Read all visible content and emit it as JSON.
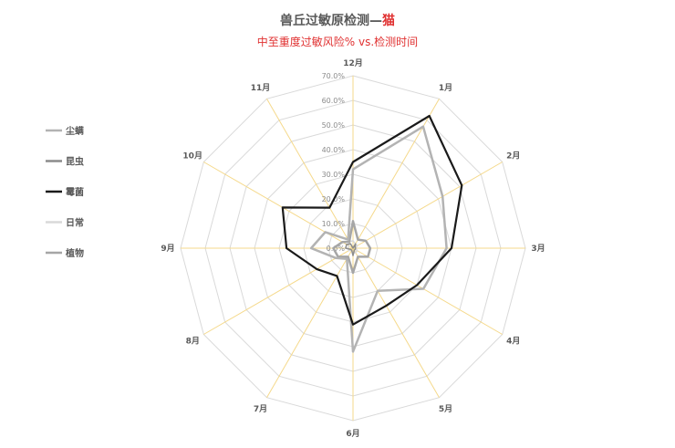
{
  "chart_data": {
    "type": "radar",
    "title": "兽丘过敏原检测—",
    "title_highlight": "猫",
    "subtitle": "中至重度过敏风险% vs.检测时间",
    "categories": [
      "12月",
      "1月",
      "2月",
      "3月",
      "4月",
      "5月",
      "6月",
      "7月",
      "8月",
      "9月",
      "10月",
      "11月"
    ],
    "rlim": [
      0,
      70
    ],
    "ticks": [
      "0.0%",
      "10.0%",
      "20.0%",
      "30.0%",
      "40.0%",
      "50.0%",
      "60.0%",
      "70.0%"
    ],
    "series": [
      {
        "name": "尘螨",
        "color": "#b3b3b3",
        "values": [
          32,
          57,
          42,
          38,
          33,
          20,
          42,
          5,
          8,
          17,
          13,
          4
        ]
      },
      {
        "name": "昆虫",
        "color": "#8c8c8c",
        "values": [
          0,
          2,
          1,
          1,
          1,
          1,
          3,
          1,
          1,
          3,
          3,
          2
        ]
      },
      {
        "name": "霉菌",
        "color": "#1a1a1a",
        "values": [
          35,
          62,
          51,
          40,
          30,
          27,
          31,
          13,
          17,
          27,
          33,
          19
        ]
      },
      {
        "name": "日常",
        "color": "#d9d9d9",
        "values": [
          3,
          2,
          2,
          1,
          2,
          2,
          2,
          1,
          2,
          2,
          2,
          3
        ]
      },
      {
        "name": "植物",
        "color": "#a6a6a6",
        "values": [
          11,
          4,
          6,
          7,
          7,
          4,
          10,
          4,
          7,
          8,
          5,
          3
        ]
      }
    ],
    "grid": true,
    "legend_position": "left",
    "colors": {
      "grid": "#d9d9d9",
      "spoke": "#f5d98b",
      "title": "#595959",
      "title_highlight": "#e03131",
      "subtitle": "#e03131"
    }
  }
}
